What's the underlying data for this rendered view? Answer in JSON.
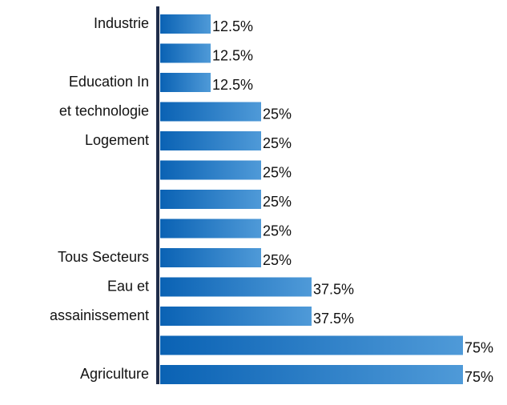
{
  "chart_data": {
    "type": "barh",
    "categories": [
      "Industrie",
      null,
      "Education In",
      "et technologie",
      "Logement",
      null,
      null,
      null,
      "Tous Secteurs",
      "Eau et",
      "assainissement",
      null,
      "Agriculture"
    ],
    "values": [
      12.5,
      12.5,
      12.5,
      25,
      25,
      25,
      25,
      25,
      25,
      37.5,
      37.5,
      75,
      75
    ],
    "value_labels": [
      "12.5%",
      "12.5%",
      "12.5%",
      "25%",
      "25%",
      "25%",
      "25%",
      "25%",
      "25%",
      "37.5%",
      "37.5%",
      "75%",
      "75%"
    ],
    "color": "#0a62b4",
    "xlim": [
      0,
      75
    ]
  }
}
